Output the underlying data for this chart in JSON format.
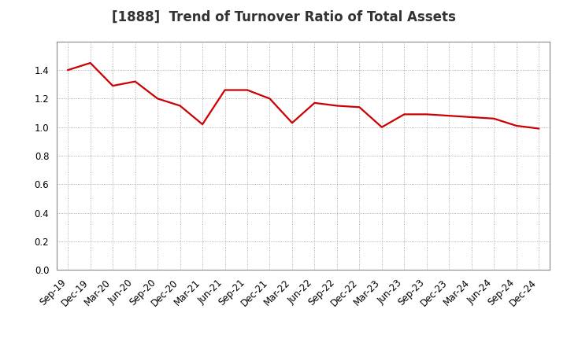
{
  "title": "[1888]  Trend of Turnover Ratio of Total Assets",
  "x_labels": [
    "Sep-19",
    "Dec-19",
    "Mar-20",
    "Jun-20",
    "Sep-20",
    "Dec-20",
    "Mar-21",
    "Jun-21",
    "Sep-21",
    "Dec-21",
    "Mar-22",
    "Jun-22",
    "Sep-22",
    "Dec-22",
    "Mar-23",
    "Jun-23",
    "Sep-23",
    "Dec-23",
    "Mar-24",
    "Jun-24",
    "Sep-24",
    "Dec-24"
  ],
  "values": [
    1.4,
    1.45,
    1.29,
    1.32,
    1.2,
    1.15,
    1.02,
    1.26,
    1.26,
    1.2,
    1.03,
    1.17,
    1.15,
    1.14,
    1.0,
    1.09,
    1.09,
    1.08,
    1.07,
    1.06,
    1.01,
    0.99
  ],
  "line_color": "#cc0000",
  "line_width": 1.6,
  "grid_color": "#999999",
  "background_color": "#ffffff",
  "ylim": [
    0.0,
    1.6
  ],
  "yticks": [
    0.0,
    0.2,
    0.4,
    0.6,
    0.8,
    1.0,
    1.2,
    1.4
  ],
  "title_fontsize": 12,
  "tick_fontsize": 8.5,
  "title_color": "#333333"
}
